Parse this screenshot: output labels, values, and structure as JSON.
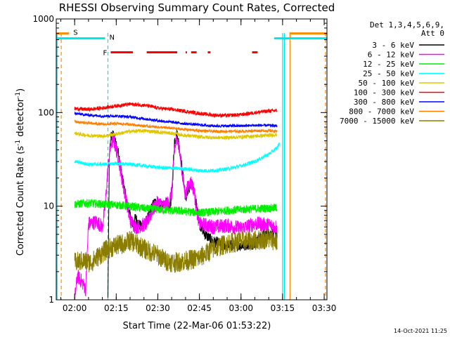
{
  "chart_data": {
    "type": "line",
    "title": "RHESSI Observing Summary Count Rates, Corrected",
    "xlabel": "Start Time (22-Mar-06 01:53:22)",
    "ylabel": "Corrected Count Rate (s⁻¹ detector⁻¹)",
    "ylabel_base": "Corrected Count Rate (s",
    "ylabel_exp1": "-1",
    "ylabel_mid": " detector",
    "ylabel_exp2": "-1",
    "ylabel_end": ")",
    "y_scale": "log",
    "ylim": [
      1,
      1000
    ],
    "xlim": [
      "01:53:22",
      "03:31:00"
    ],
    "x_ticks": [
      "02:00",
      "02:15",
      "02:30",
      "02:45",
      "03:00",
      "03:15",
      "03:30"
    ],
    "y_ticks": [
      "1",
      "10",
      "100",
      "1000"
    ],
    "legend_header": [
      "Det 1,3,4,5,6,9,",
      "Att 0"
    ],
    "legend_placement": "right",
    "footer_date": "14-Oct-2021 11:25",
    "markers": [
      {
        "label": "S",
        "color": "#ff8c00",
        "bar_y": 700,
        "t_start": "01:53:22",
        "t_end": "01:58:00",
        "t_start2": "03:17:30",
        "t_end2": "03:31:00"
      },
      {
        "label": "N",
        "color": "#00e5e5",
        "bar_y": 620,
        "t_start": "01:53:22",
        "t_end": "02:11:00",
        "t_start2": "03:12:00",
        "t_end2": "03:31:00"
      },
      {
        "label": "F",
        "color": "#ff0000",
        "bar_y": 440,
        "segments": [
          [
            "02:13:00",
            "02:21:00"
          ],
          [
            "02:26:00",
            "02:37:00"
          ],
          [
            "02:40:00",
            "02:40:30"
          ],
          [
            "02:42:00",
            "02:44:00"
          ],
          [
            "02:48:00",
            "02:49:00"
          ],
          [
            "03:04:00",
            "03:06:00"
          ]
        ]
      }
    ],
    "vertical_lines": [
      {
        "t": "01:55:10",
        "color": "#ff8c00",
        "style": "dashed"
      },
      {
        "t": "02:12:00",
        "color": "#00e5e5",
        "style": "dashed"
      },
      {
        "t": "03:15:00",
        "color": "#00e5e5",
        "style": "solid"
      },
      {
        "t": "03:15:40",
        "color": "#00e5e5",
        "style": "solid"
      },
      {
        "t": "03:17:40",
        "color": "#ff8c00",
        "style": "solid"
      },
      {
        "t": "03:30:30",
        "color": "#ff8c00",
        "style": "dashed"
      },
      {
        "t": "01:53:40",
        "color": "#00e5e5",
        "style": "solid"
      }
    ],
    "series": [
      {
        "name": "3 - 6 keV",
        "color": "#000000",
        "points": [
          [
            "02:12:00",
            1.0
          ],
          [
            "02:12:30",
            30
          ],
          [
            "02:13:00",
            55
          ],
          [
            "02:14:00",
            58
          ],
          [
            "02:15:00",
            45
          ],
          [
            "02:16:00",
            35
          ],
          [
            "02:17:00",
            22
          ],
          [
            "02:18:00",
            15
          ],
          [
            "02:19:00",
            10
          ],
          [
            "02:20:00",
            8
          ],
          [
            "02:21:00",
            6.5
          ],
          [
            "02:22:00",
            7.5
          ],
          [
            "02:23:00",
            6.5
          ],
          [
            "02:24:00",
            6
          ],
          [
            "02:26:00",
            7
          ],
          [
            "02:28:00",
            10
          ],
          [
            "02:29:00",
            11
          ],
          [
            "02:30:00",
            10
          ],
          [
            "02:32:00",
            10
          ],
          [
            "02:33:00",
            11
          ],
          [
            "02:34:00",
            9.5
          ],
          [
            "02:35:00",
            12
          ],
          [
            "02:36:00",
            50
          ],
          [
            "02:37:00",
            60
          ],
          [
            "02:38:00",
            38
          ],
          [
            "02:39:00",
            22
          ],
          [
            "02:40:00",
            12
          ],
          [
            "02:41:00",
            14
          ],
          [
            "02:42:00",
            18
          ],
          [
            "02:43:00",
            15
          ],
          [
            "02:44:00",
            10
          ],
          [
            "02:45:00",
            6.5
          ],
          [
            "02:47:00",
            5
          ],
          [
            "02:50:00",
            4.2
          ],
          [
            "02:55:00",
            3.8
          ],
          [
            "03:00:00",
            3.8
          ],
          [
            "03:05:00",
            4.0
          ],
          [
            "03:08:00",
            5
          ],
          [
            "03:12:00",
            5.2
          ],
          [
            "03:13:00",
            5.0
          ]
        ]
      },
      {
        "name": "6 - 12 keV",
        "color": "#ff00ff",
        "points": [
          [
            "02:00:00",
            1.0
          ],
          [
            "02:01:00",
            1.8
          ],
          [
            "02:03:00",
            1.5
          ],
          [
            "02:04:00",
            1.3
          ],
          [
            "02:05:00",
            6.5
          ],
          [
            "02:08:00",
            6.8
          ],
          [
            "02:10:00",
            6.0
          ],
          [
            "02:11:00",
            10
          ],
          [
            "02:12:00",
            25
          ],
          [
            "02:13:00",
            45
          ],
          [
            "02:14:00",
            52
          ],
          [
            "02:15:00",
            40
          ],
          [
            "02:16:00",
            30
          ],
          [
            "02:17:00",
            20
          ],
          [
            "02:18:00",
            14
          ],
          [
            "02:19:00",
            10
          ],
          [
            "02:20:00",
            7
          ],
          [
            "02:22:00",
            6
          ],
          [
            "02:24:00",
            6.2
          ],
          [
            "02:26:00",
            6.5
          ],
          [
            "02:28:00",
            9
          ],
          [
            "02:30:00",
            11
          ],
          [
            "02:32:00",
            10
          ],
          [
            "02:34:00",
            11
          ],
          [
            "02:35:00",
            14
          ],
          [
            "02:36:00",
            40
          ],
          [
            "02:37:00",
            55
          ],
          [
            "02:38:00",
            35
          ],
          [
            "02:39:00",
            20
          ],
          [
            "02:40:00",
            13
          ],
          [
            "02:41:00",
            17
          ],
          [
            "02:42:00",
            18
          ],
          [
            "02:43:00",
            15
          ],
          [
            "02:44:00",
            9
          ],
          [
            "02:45:00",
            6.5
          ],
          [
            "02:50:00",
            6.0
          ],
          [
            "02:55:00",
            6.2
          ],
          [
            "03:00:00",
            5.8
          ],
          [
            "03:05:00",
            6.5
          ],
          [
            "03:10:00",
            6.3
          ],
          [
            "03:13:00",
            6.0
          ]
        ]
      },
      {
        "name": "12 - 25 keV",
        "color": "#00ee00",
        "points": [
          [
            "02:00:00",
            10.5
          ],
          [
            "02:05:00",
            10.8
          ],
          [
            "02:10:00",
            10.5
          ],
          [
            "02:15:00",
            10.3
          ],
          [
            "02:20:00",
            10
          ],
          [
            "02:25:00",
            9.5
          ],
          [
            "02:30:00",
            9.2
          ],
          [
            "02:35:00",
            9.0
          ],
          [
            "02:40:00",
            8.8
          ],
          [
            "02:45:00",
            8.5
          ],
          [
            "02:50:00",
            8.7
          ],
          [
            "02:55:00",
            9.0
          ],
          [
            "03:00:00",
            9.2
          ],
          [
            "03:05:00",
            9.4
          ],
          [
            "03:10:00",
            9.5
          ],
          [
            "03:13:00",
            9.6
          ]
        ]
      },
      {
        "name": "25 - 50 keV",
        "color": "#00ffff",
        "points": [
          [
            "02:00:00",
            30
          ],
          [
            "02:05:00",
            28
          ],
          [
            "02:10:00",
            28
          ],
          [
            "02:15:00",
            28.5
          ],
          [
            "02:20:00",
            28
          ],
          [
            "02:25:00",
            27
          ],
          [
            "02:30:00",
            26
          ],
          [
            "02:35:00",
            25.5
          ],
          [
            "02:40:00",
            25
          ],
          [
            "02:45:00",
            24
          ],
          [
            "02:50:00",
            24
          ],
          [
            "02:55:00",
            25
          ],
          [
            "03:00:00",
            27
          ],
          [
            "03:05:00",
            30
          ],
          [
            "03:10:00",
            36
          ],
          [
            "03:13:00",
            42
          ],
          [
            "03:14:00",
            48
          ]
        ]
      },
      {
        "name": "50 - 100 keV",
        "color": "#e0c800",
        "points": [
          [
            "02:00:00",
            60
          ],
          [
            "02:05:00",
            57
          ],
          [
            "02:10:00",
            56
          ],
          [
            "02:15:00",
            59
          ],
          [
            "02:20:00",
            63
          ],
          [
            "02:25:00",
            64
          ],
          [
            "02:30:00",
            62
          ],
          [
            "02:35:00",
            60
          ],
          [
            "02:40:00",
            57
          ],
          [
            "02:45:00",
            55
          ],
          [
            "02:50:00",
            54
          ],
          [
            "02:55:00",
            54
          ],
          [
            "03:00:00",
            55
          ],
          [
            "03:05:00",
            56
          ],
          [
            "03:10:00",
            57
          ],
          [
            "03:13:00",
            58
          ]
        ]
      },
      {
        "name": "100 - 300 keV",
        "color": "#ff0000",
        "points": [
          [
            "02:00:00",
            110
          ],
          [
            "02:05:00",
            108
          ],
          [
            "02:10:00",
            112
          ],
          [
            "02:15:00",
            118
          ],
          [
            "02:20:00",
            123
          ],
          [
            "02:25:00",
            120
          ],
          [
            "02:30:00",
            112
          ],
          [
            "02:35:00",
            108
          ],
          [
            "02:40:00",
            103
          ],
          [
            "02:45:00",
            98
          ],
          [
            "02:50:00",
            94
          ],
          [
            "02:55:00",
            93
          ],
          [
            "03:00:00",
            95
          ],
          [
            "03:05:00",
            100
          ],
          [
            "03:10:00",
            104
          ],
          [
            "03:13:00",
            105
          ]
        ]
      },
      {
        "name": "300 - 800 keV",
        "color": "#0000ff",
        "points": [
          [
            "02:00:00",
            98
          ],
          [
            "02:05:00",
            94
          ],
          [
            "02:10:00",
            92
          ],
          [
            "02:15:00",
            92
          ],
          [
            "02:20:00",
            90
          ],
          [
            "02:25:00",
            86
          ],
          [
            "02:30:00",
            82
          ],
          [
            "02:35:00",
            79
          ],
          [
            "02:40:00",
            76
          ],
          [
            "02:45:00",
            74
          ],
          [
            "02:50:00",
            72
          ],
          [
            "02:55:00",
            72
          ],
          [
            "03:00:00",
            72
          ],
          [
            "03:05:00",
            73
          ],
          [
            "03:10:00",
            73
          ],
          [
            "03:13:00",
            72
          ]
        ]
      },
      {
        "name": "800 - 7000 keV",
        "color": "#ff8000",
        "points": [
          [
            "02:00:00",
            80
          ],
          [
            "02:05:00",
            77
          ],
          [
            "02:10:00",
            75
          ],
          [
            "02:15:00",
            76
          ],
          [
            "02:20:00",
            75
          ],
          [
            "02:25:00",
            72
          ],
          [
            "02:30:00",
            70
          ],
          [
            "02:35:00",
            68
          ],
          [
            "02:40:00",
            66
          ],
          [
            "02:45:00",
            64
          ],
          [
            "02:50:00",
            63
          ],
          [
            "02:55:00",
            63
          ],
          [
            "03:00:00",
            63
          ],
          [
            "03:05:00",
            64
          ],
          [
            "03:10:00",
            64
          ],
          [
            "03:13:00",
            63
          ]
        ]
      },
      {
        "name": "7000 - 15000 keV",
        "color": "#8b7d00",
        "points": [
          [
            "02:00:00",
            2.5
          ],
          [
            "02:03:00",
            2.6
          ],
          [
            "02:06:00",
            2.5
          ],
          [
            "02:09:00",
            3.0
          ],
          [
            "02:12:00",
            3.5
          ],
          [
            "02:15:00",
            3.8
          ],
          [
            "02:18:00",
            4.0
          ],
          [
            "02:20:00",
            4.3
          ],
          [
            "02:22:00",
            4.0
          ],
          [
            "02:25:00",
            3.5
          ],
          [
            "02:28:00",
            3.2
          ],
          [
            "02:30:00",
            3.0
          ],
          [
            "02:33:00",
            2.6
          ],
          [
            "02:36:00",
            2.5
          ],
          [
            "02:40:00",
            2.6
          ],
          [
            "02:45:00",
            2.8
          ],
          [
            "02:50:00",
            3.5
          ],
          [
            "02:55:00",
            4.0
          ],
          [
            "03:00:00",
            4.2
          ],
          [
            "03:05:00",
            4.3
          ],
          [
            "03:10:00",
            4.5
          ],
          [
            "03:13:00",
            4.2
          ]
        ]
      }
    ]
  }
}
